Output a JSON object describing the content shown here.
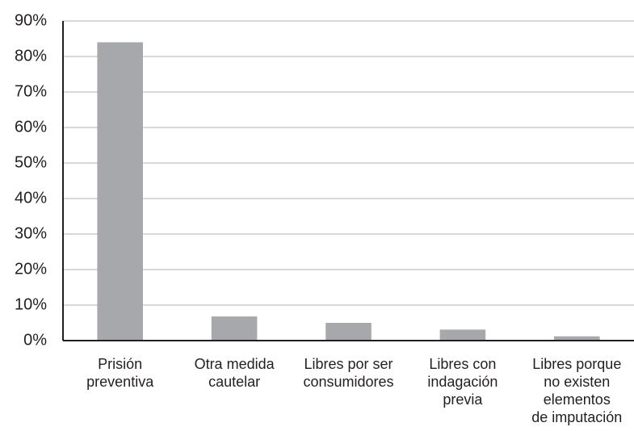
{
  "chart_data": {
    "type": "bar",
    "categories": [
      [
        "Prisión",
        "preventiva"
      ],
      [
        "Otra medida",
        "cautelar"
      ],
      [
        "Libres por ser",
        "consumidores"
      ],
      [
        "Libres con",
        "indagación",
        "previa"
      ],
      [
        "Libres porque",
        "no existen",
        "elementos",
        "de imputación"
      ]
    ],
    "values": [
      84,
      6.8,
      5,
      3.1,
      1.2
    ],
    "color": "#a7a8ac",
    "ylim": [
      0,
      90
    ],
    "yticks": [
      {
        "value": 0,
        "label": "0%"
      },
      {
        "value": 10,
        "label": "10%"
      },
      {
        "value": 20,
        "label": "20%"
      },
      {
        "value": 30,
        "label": "30%"
      },
      {
        "value": 40,
        "label": "40%"
      },
      {
        "value": 50,
        "label": "50%"
      },
      {
        "value": 60,
        "label": "60%"
      },
      {
        "value": 70,
        "label": "70%"
      },
      {
        "value": 80,
        "label": "80%"
      },
      {
        "value": 90,
        "label": "90%"
      }
    ],
    "grid": true
  }
}
